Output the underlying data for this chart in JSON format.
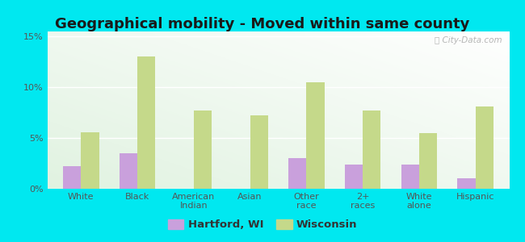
{
  "title": "Geographical mobility - Moved within same county",
  "categories": [
    "White",
    "Black",
    "American\nIndian",
    "Asian",
    "Other\nrace",
    "2+\nraces",
    "White\nalone",
    "Hispanic"
  ],
  "hartford_values": [
    2.2,
    3.5,
    0,
    0,
    3.0,
    2.4,
    2.4,
    1.0
  ],
  "wisconsin_values": [
    5.6,
    13.0,
    7.7,
    7.2,
    10.5,
    7.7,
    5.5,
    8.1
  ],
  "hartford_color": "#c9a0dc",
  "wisconsin_color": "#c5d98a",
  "background_color": "#00e8f0",
  "yticks": [
    0,
    5,
    10,
    15
  ],
  "ylim": [
    0,
    15.5
  ],
  "bar_width": 0.32,
  "title_fontsize": 13,
  "tick_fontsize": 8,
  "legend_fontsize": 9.5,
  "watermark_text": "ⓘ City-Data.com"
}
